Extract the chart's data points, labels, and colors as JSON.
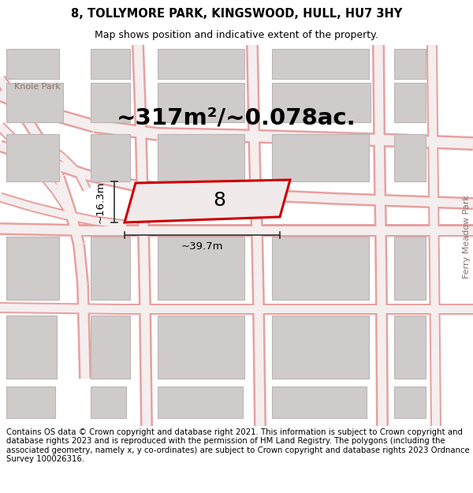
{
  "title": "8, TOLLYMORE PARK, KINGSWOOD, HULL, HU7 3HY",
  "subtitle": "Map shows position and indicative extent of the property.",
  "area_text": "~317m²/~0.078ac.",
  "width_label": "~39.7m",
  "height_label": "~16.3m",
  "property_number": "8",
  "footer_text": "Contains OS data © Crown copyright and database right 2021. This information is subject to Crown copyright and database rights 2023 and is reproduced with the permission of HM Land Registry. The polygons (including the associated geometry, namely x, y co-ordinates) are subject to Crown copyright and database rights 2023 Ordnance Survey 100026316.",
  "left_label": "Knole Park",
  "right_label": "Ferry Meadow Park",
  "map_bg": "#ece6e6",
  "road_outer": "#e8a0a0",
  "road_inner": "#f5eeee",
  "building_fill": "#d0cbcb",
  "building_edge": "#bcb5b5",
  "prop_fill": "#f0eaea",
  "prop_edge": "#cc0000",
  "label_color": "#887070",
  "title_fontsize": 10.5,
  "subtitle_fontsize": 9,
  "area_fontsize": 21,
  "prop_num_fontsize": 18,
  "dim_fontsize": 9.5,
  "side_label_fontsize": 8,
  "footer_fontsize": 7.3
}
